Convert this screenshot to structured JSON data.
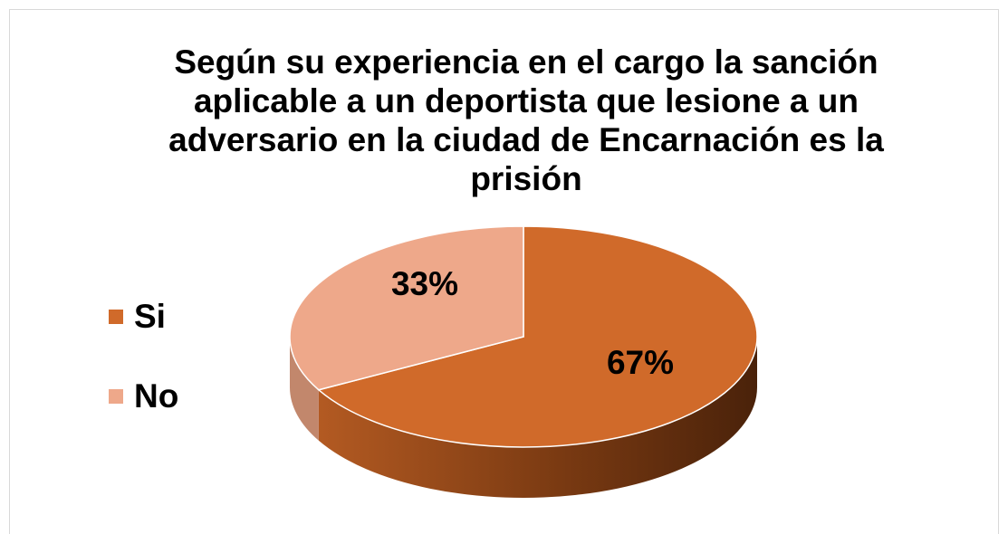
{
  "chart_data": {
    "type": "pie",
    "title": "Según su experiencia en el cargo la sanción aplicable a un deportista que lesione a un adversario en la ciudad de Encarnación es la prisión",
    "title_lines": [
      "Según su experiencia en el cargo la sanción",
      "aplicable a un deportista que lesione a un",
      "adversario en la ciudad de Encarnación es la",
      "prisión"
    ],
    "categories": [
      "Si",
      "No"
    ],
    "values": [
      67,
      33
    ],
    "data_labels": [
      "67%",
      "33%"
    ],
    "colors": [
      "#d06a2a",
      "#eea88a"
    ],
    "legend": {
      "position": "left",
      "entries": [
        "Si",
        "No"
      ]
    },
    "style": "3d-pie"
  }
}
